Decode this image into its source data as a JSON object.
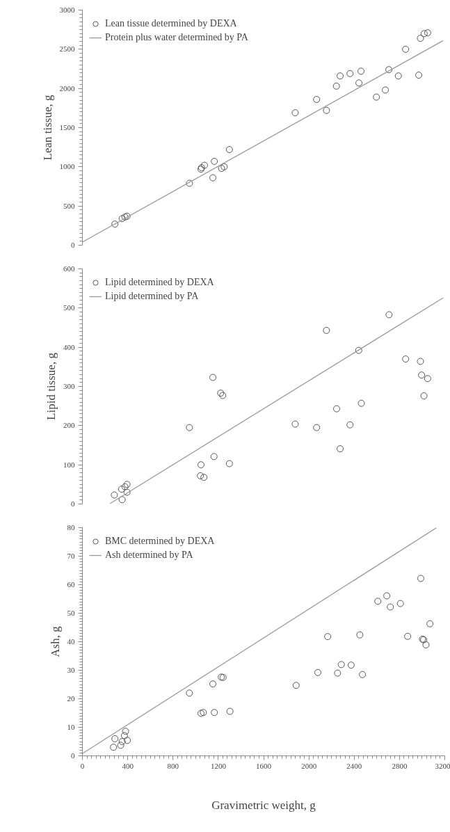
{
  "chart_data": [
    {
      "type": "scatter",
      "ylabel": "Lean tissue, g",
      "xlim": [
        0,
        3200
      ],
      "ylim": [
        0,
        3000
      ],
      "yticks": [
        0,
        500,
        1000,
        1500,
        2000,
        2500,
        3000
      ],
      "tick_labels": "y",
      "grid": false,
      "legend": "top left",
      "line_style": "solid",
      "series": [
        {
          "name": "Lean tissue determined by DEXA",
          "marker": "circle",
          "color": "#555555",
          "x": [
            287,
            351,
            376,
            394,
            945,
            1047,
            1052,
            1078,
            1152,
            1165,
            1229,
            1252,
            1298,
            1879,
            2068,
            2155,
            2243,
            2276,
            2363,
            2442,
            2460,
            2596,
            2675,
            2706,
            2790,
            2854,
            2970,
            2985,
            3018,
            3049
          ],
          "values": [
            270,
            340,
            360,
            370,
            790,
            970,
            990,
            1020,
            860,
            1070,
            980,
            1000,
            1220,
            1690,
            1860,
            1720,
            2030,
            2160,
            2190,
            2070,
            2220,
            1890,
            1980,
            2240,
            2160,
            2500,
            2170,
            2640,
            2700,
            2710
          ]
        },
        {
          "name": "Protein plus water determined by PA",
          "type": "line",
          "marker": "none",
          "color": "#999999",
          "x": [
            0,
            3185
          ],
          "values": [
            40,
            2610
          ]
        }
      ]
    },
    {
      "type": "scatter",
      "ylabel": "Lipid tissue, g",
      "xlim": [
        0,
        3200
      ],
      "ylim": [
        0,
        600
      ],
      "yticks": [
        0,
        100,
        200,
        300,
        400,
        500,
        600
      ],
      "tick_labels": "y",
      "grid": false,
      "legend": "top left",
      "line_style": "solid",
      "series": [
        {
          "name": "Lipid determined by DEXA",
          "marker": "circle",
          "color": "#555555",
          "x": [
            282,
            346,
            351,
            376,
            394,
            394,
            945,
            1042,
            1047,
            1073,
            1152,
            1162,
            1221,
            1239,
            1298,
            1879,
            2068,
            2155,
            2245,
            2276,
            2363,
            2440,
            2463,
            2708,
            2854,
            2985,
            2995,
            3016,
            3049
          ],
          "values": [
            23,
            38,
            11,
            44,
            50,
            30,
            195,
            72,
            100,
            68,
            323,
            121,
            283,
            277,
            103,
            204,
            195,
            443,
            243,
            141,
            202,
            392,
            257,
            483,
            370,
            364,
            329,
            276,
            320
          ]
        },
        {
          "name": "Lipid determined by PA",
          "type": "line",
          "marker": "none",
          "color": "#999999",
          "x": [
            243,
            3185
          ],
          "values": [
            1,
            526
          ]
        }
      ]
    },
    {
      "type": "scatter",
      "xlabel": "Gravimetric weight, g",
      "ylabel": "Ash, g",
      "xlim": [
        0,
        3200
      ],
      "xticks": [
        0,
        400,
        800,
        1200,
        1600,
        2000,
        2400,
        2800,
        3200
      ],
      "ylim": [
        0,
        80
      ],
      "yticks": [
        0,
        10,
        20,
        30,
        40,
        50,
        60,
        70,
        80
      ],
      "grid": false,
      "legend": "top left",
      "line_style": "solid",
      "series": [
        {
          "name": "BMC determined by DEXA",
          "marker": "circle",
          "color": "#555555",
          "x": [
            274,
            287,
            338,
            351,
            371,
            381,
            397,
            945,
            1047,
            1068,
            1152,
            1165,
            1226,
            1242,
            1303,
            1887,
            2079,
            2166,
            2253,
            2286,
            2373,
            2450,
            2473,
            2609,
            2688,
            2719,
            2808,
            2872,
            2988,
            3003,
            3013,
            3034,
            3069
          ],
          "values": [
            3.0,
            6.0,
            3.7,
            5.0,
            7.1,
            8.6,
            5.4,
            22.0,
            14.9,
            15.2,
            25.2,
            15.2,
            27.6,
            27.5,
            15.6,
            24.7,
            29.2,
            41.8,
            29.0,
            32.0,
            31.8,
            42.4,
            28.5,
            54.2,
            56.1,
            52.2,
            53.4,
            41.9,
            62.2,
            40.9,
            40.7,
            38.9,
            46.3
          ]
        },
        {
          "name": "Ash determined by PA",
          "type": "line",
          "marker": "none",
          "color": "#999999",
          "x": [
            0,
            3128
          ],
          "values": [
            0.8,
            80
          ]
        }
      ]
    }
  ]
}
